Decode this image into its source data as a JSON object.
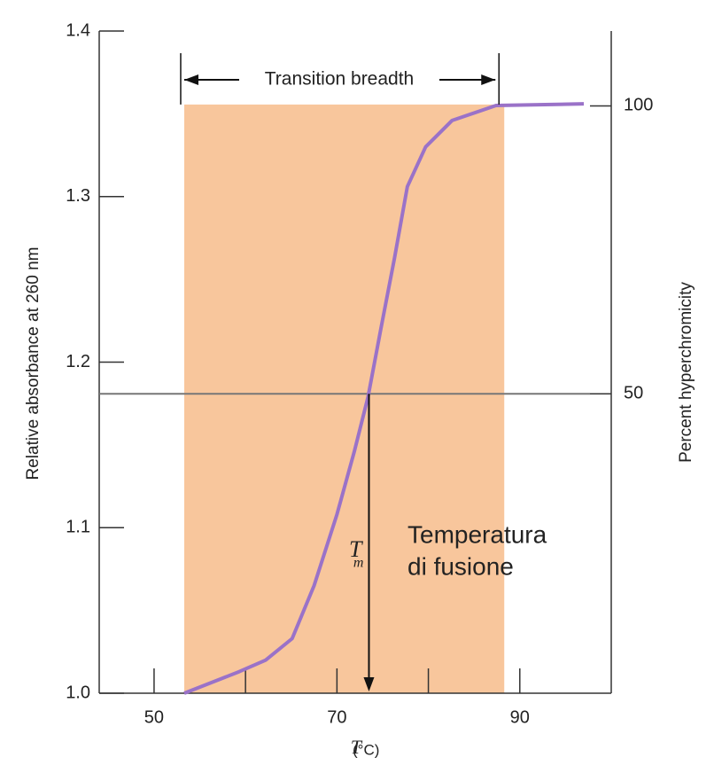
{
  "chart_data": {
    "type": "line",
    "ylabel": "Relative absorbance at 260 nm",
    "y2label": "Percent hyperchromicity",
    "xlabel": [
      "T",
      "(°C)"
    ],
    "series": [
      {
        "name": "Absorbance",
        "color": "#9a72c8",
        "x": [
          53.3,
          59.3,
          62.2,
          65.1,
          67.5,
          70,
          71.9,
          73.4,
          74.8,
          76.3,
          77.7,
          79.7,
          82.6,
          87.4,
          97
        ],
        "values": [
          1.0,
          1.013,
          1.02,
          1.033,
          1.065,
          1.108,
          1.146,
          1.179,
          1.22,
          1.263,
          1.306,
          1.33,
          1.346,
          1.355,
          1.356
        ]
      }
    ],
    "xlim": [
      44,
      100
    ],
    "xticks": [
      50,
      70,
      90
    ],
    "minor_xticks": [
      60,
      80
    ],
    "ylim": [
      1.0,
      1.4
    ],
    "yticks": [
      {
        "value": 1,
        "label": "1.0"
      },
      1.1,
      1.2,
      1.3,
      1.4
    ],
    "y2lim": [
      -2,
      113
    ],
    "y2ticks": [
      50,
      100
    ],
    "shade": {
      "x": [
        53.3,
        88.3
      ],
      "top": 1.3556,
      "color": "#f8c69c"
    },
    "reference_line": 50,
    "transition_label": "Transition breadth",
    "tm": {
      "x": 73.5,
      "label": [
        "T",
        "m"
      ]
    },
    "annotation": [
      "Temperatura",
      "di fusione"
    ]
  }
}
